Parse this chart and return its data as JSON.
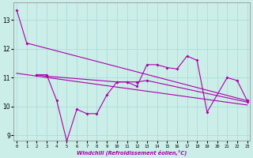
{
  "xlabel": "Windchill (Refroidissement éolien,°C)",
  "background_color": "#cceee8",
  "grid_color": "#aadddd",
  "line_color": "#aa00aa",
  "series1_x": [
    0,
    1,
    23
  ],
  "series1_y": [
    13.35,
    12.2,
    10.2
  ],
  "series2_x": [
    2,
    3,
    4,
    5,
    6,
    7,
    8,
    9,
    10,
    11,
    12,
    13,
    14,
    15,
    16,
    17,
    18,
    19,
    21,
    22,
    23
  ],
  "series2_y": [
    11.1,
    11.1,
    10.2,
    8.8,
    9.9,
    9.75,
    9.75,
    10.4,
    10.85,
    10.85,
    10.7,
    11.45,
    11.45,
    11.35,
    11.3,
    11.75,
    11.6,
    9.8,
    11.0,
    10.9,
    10.2
  ],
  "series3_x": [
    2,
    3,
    10,
    11,
    12,
    13,
    23
  ],
  "series3_y": [
    11.1,
    11.05,
    10.85,
    10.85,
    10.85,
    10.9,
    10.15
  ],
  "series4_x": [
    0,
    23
  ],
  "series4_y": [
    11.15,
    10.05
  ],
  "ylim": [
    8.8,
    13.6
  ],
  "xlim": [
    -0.3,
    23.3
  ],
  "yticks": [
    9,
    10,
    11,
    12,
    13
  ],
  "xticks": [
    0,
    1,
    2,
    3,
    4,
    5,
    6,
    7,
    8,
    9,
    10,
    11,
    12,
    13,
    14,
    15,
    16,
    17,
    18,
    19,
    20,
    21,
    22,
    23
  ]
}
